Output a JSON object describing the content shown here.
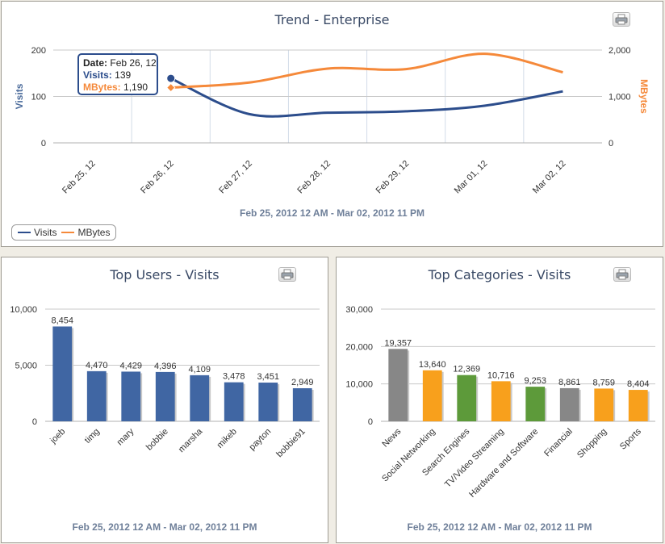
{
  "trend": {
    "title": "Trend - Enterprise",
    "date_range": "Feb 25, 2012 12 AM - Mar 02, 2012 11 PM",
    "tooltip": {
      "date_label": "Date:",
      "date_value": "Feb 26, 12",
      "visits_label": "Visits:",
      "visits_value": "139",
      "mbytes_label": "MBytes:",
      "mbytes_value": "1,190"
    },
    "legend": [
      {
        "label": "Visits",
        "color": "#2c4d8c"
      },
      {
        "label": "MBytes",
        "color": "#f5893a"
      }
    ]
  },
  "users": {
    "title": "Top Users - Visits",
    "date_range": "Feb 25, 2012 12 AM - Mar 02, 2012 11 PM"
  },
  "categories": {
    "title": "Top Categories - Visits",
    "date_range": "Feb 25, 2012 12 AM - Mar 02, 2012 11 PM"
  },
  "chart_data": [
    {
      "type": "line",
      "title": "Trend - Enterprise",
      "x": [
        "Feb 25, 12",
        "Feb 26, 12",
        "Feb 27, 12",
        "Feb 28, 12",
        "Feb 29, 12",
        "Mar 01, 12",
        "Mar 02, 12"
      ],
      "xlabel": "Feb 25, 2012 12 AM - Mar 02, 2012 11 PM",
      "series": [
        {
          "name": "Visits",
          "axis": "left",
          "color": "#2c4d8c",
          "values": [
            null,
            139,
            62,
            65,
            68,
            80,
            111
          ]
        },
        {
          "name": "MBytes",
          "axis": "right",
          "color": "#f5893a",
          "values": [
            null,
            1190,
            1300,
            1600,
            1590,
            1920,
            1520
          ]
        }
      ],
      "ylabel": "Visits",
      "ylim": [
        0,
        200
      ],
      "yticks": [
        "0",
        "100",
        "200"
      ],
      "y2label": "MBytes",
      "y2lim": [
        0,
        2000
      ],
      "y2ticks": [
        "0",
        "1,000",
        "2,000"
      ],
      "grid": true,
      "legend": "bottom-left"
    },
    {
      "type": "bar",
      "title": "Top Users - Visits",
      "categories": [
        "joeb",
        "timg",
        "mary",
        "bobbie",
        "marsha",
        "mikeb",
        "payton",
        "bobbie91"
      ],
      "values": [
        8454,
        4470,
        4429,
        4396,
        4109,
        3478,
        3451,
        2949
      ],
      "labels": [
        "8,454",
        "4,470",
        "4,429",
        "4,396",
        "4,109",
        "3,478",
        "3,451",
        "2,949"
      ],
      "color": "#4066a3",
      "ylim": [
        0,
        10000
      ],
      "yticks": [
        "0",
        "5,000",
        "10,000"
      ],
      "xlabel": "Feb 25, 2012 12 AM - Mar 02, 2012 11 PM"
    },
    {
      "type": "bar",
      "title": "Top Categories - Visits",
      "categories": [
        "News",
        "Social Networking",
        "Search Engines",
        "TV/Video Streaming",
        "Hardware and Software",
        "Financial",
        "Shopping",
        "Sports"
      ],
      "values": [
        19357,
        13640,
        12369,
        10716,
        9253,
        8861,
        8759,
        8404
      ],
      "labels": [
        "19,357",
        "13,640",
        "12,369",
        "10,716",
        "9,253",
        "8,861",
        "8,759",
        "8,404"
      ],
      "colors": [
        "#878787",
        "#f8a01c",
        "#5d9a3a",
        "#f8a01c",
        "#5d9a3a",
        "#878787",
        "#f8a01c",
        "#f8a01c"
      ],
      "ylim": [
        0,
        30000
      ],
      "yticks": [
        "0",
        "10,000",
        "20,000",
        "30,000"
      ],
      "xlabel": "Feb 25, 2012 12 AM - Mar 02, 2012 11 PM"
    }
  ]
}
